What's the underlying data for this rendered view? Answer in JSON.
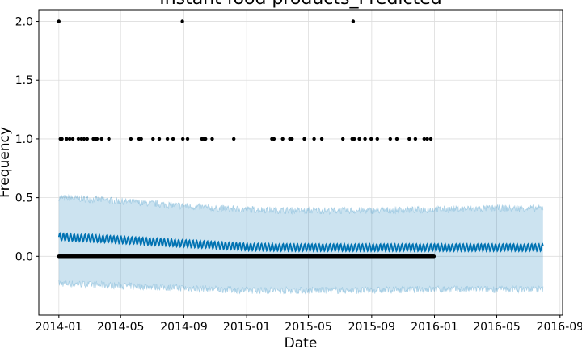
{
  "chart_data": {
    "type": "scatter",
    "title": "Instant food products_Predicted",
    "xlabel": "Date",
    "ylabel": "Frequency",
    "grid": true,
    "xlim": [
      "2013-11-23",
      "2016-09-06"
    ],
    "ylim": [
      -0.5,
      2.1
    ],
    "x_ticks": [
      "2014-01",
      "2014-05",
      "2014-09",
      "2015-01",
      "2015-05",
      "2015-09",
      "2016-01",
      "2016-05",
      "2016-09"
    ],
    "y_ticks": [
      "0.0",
      "0.5",
      "1.0",
      "1.5",
      "2.0"
    ],
    "colors": {
      "observed": "#000000",
      "forecast": "#0072B2",
      "uncertainty_band": "#0072B2",
      "grid": "#dddddd"
    },
    "series": [
      {
        "kind": "observed",
        "x": [
          "2014-01-01",
          "2014-08-29",
          "2015-07-27"
        ],
        "y": [
          2,
          2,
          2
        ]
      },
      {
        "kind": "observed",
        "x": [
          "2014-01-04",
          "2014-01-07",
          "2014-01-16",
          "2014-01-22",
          "2014-01-28",
          "2014-02-08",
          "2014-02-14",
          "2014-02-19",
          "2014-02-25",
          "2014-03-09",
          "2014-03-13",
          "2014-03-16",
          "2014-03-25",
          "2014-04-08",
          "2014-05-21",
          "2014-06-06",
          "2014-06-10",
          "2014-07-03",
          "2014-07-15",
          "2014-07-31",
          "2014-08-11",
          "2014-08-30",
          "2014-09-08",
          "2014-10-06",
          "2014-10-10",
          "2014-10-13",
          "2014-10-26",
          "2014-12-07",
          "2015-02-19",
          "2015-02-23",
          "2015-03-12",
          "2015-03-26",
          "2015-03-30",
          "2015-04-23",
          "2015-05-12",
          "2015-05-27",
          "2015-07-07",
          "2015-07-25",
          "2015-07-29",
          "2015-08-08",
          "2015-08-19",
          "2015-08-31",
          "2015-09-12",
          "2015-10-07",
          "2015-10-20",
          "2015-11-13",
          "2015-11-25",
          "2015-12-12",
          "2015-12-18",
          "2015-12-25"
        ],
        "y": [
          1,
          1,
          1,
          1,
          1,
          1,
          1,
          1,
          1,
          1,
          1,
          1,
          1,
          1,
          1,
          1,
          1,
          1,
          1,
          1,
          1,
          1,
          1,
          1,
          1,
          1,
          1,
          1,
          1,
          1,
          1,
          1,
          1,
          1,
          1,
          1,
          1,
          1,
          1,
          1,
          1,
          1,
          1,
          1,
          1,
          1,
          1,
          1,
          1,
          1
        ]
      },
      {
        "kind": "observed_daily",
        "x_start": "2014-01-01",
        "x_end": "2015-12-31",
        "y": 0
      },
      {
        "kind": "forecast",
        "x": [
          "2014-01-01",
          "2014-03-01",
          "2014-05-01",
          "2014-07-01",
          "2014-09-01",
          "2014-11-01",
          "2015-01-01",
          "2015-04-01",
          "2015-09-01",
          "2016-01-01",
          "2016-05-01",
          "2016-07-30"
        ],
        "yhat": [
          0.165,
          0.155,
          0.14,
          0.125,
          0.11,
          0.095,
          0.08,
          0.075,
          0.075,
          0.075,
          0.075,
          0.075
        ],
        "weekly_amplitude": 0.03
      },
      {
        "kind": "uncertainty",
        "x": [
          "2014-01-01",
          "2014-03-01",
          "2014-05-01",
          "2014-07-01",
          "2014-09-01",
          "2014-11-01",
          "2015-01-01",
          "2015-04-01",
          "2015-09-01",
          "2016-01-01",
          "2016-05-01",
          "2016-07-30"
        ],
        "upper": [
          0.5,
          0.49,
          0.47,
          0.45,
          0.43,
          0.41,
          0.4,
          0.39,
          0.39,
          0.4,
          0.41,
          0.41
        ],
        "lower": [
          -0.23,
          -0.24,
          -0.25,
          -0.26,
          -0.27,
          -0.28,
          -0.29,
          -0.29,
          -0.29,
          -0.28,
          -0.28,
          -0.28
        ],
        "noise": 0.03
      }
    ]
  }
}
